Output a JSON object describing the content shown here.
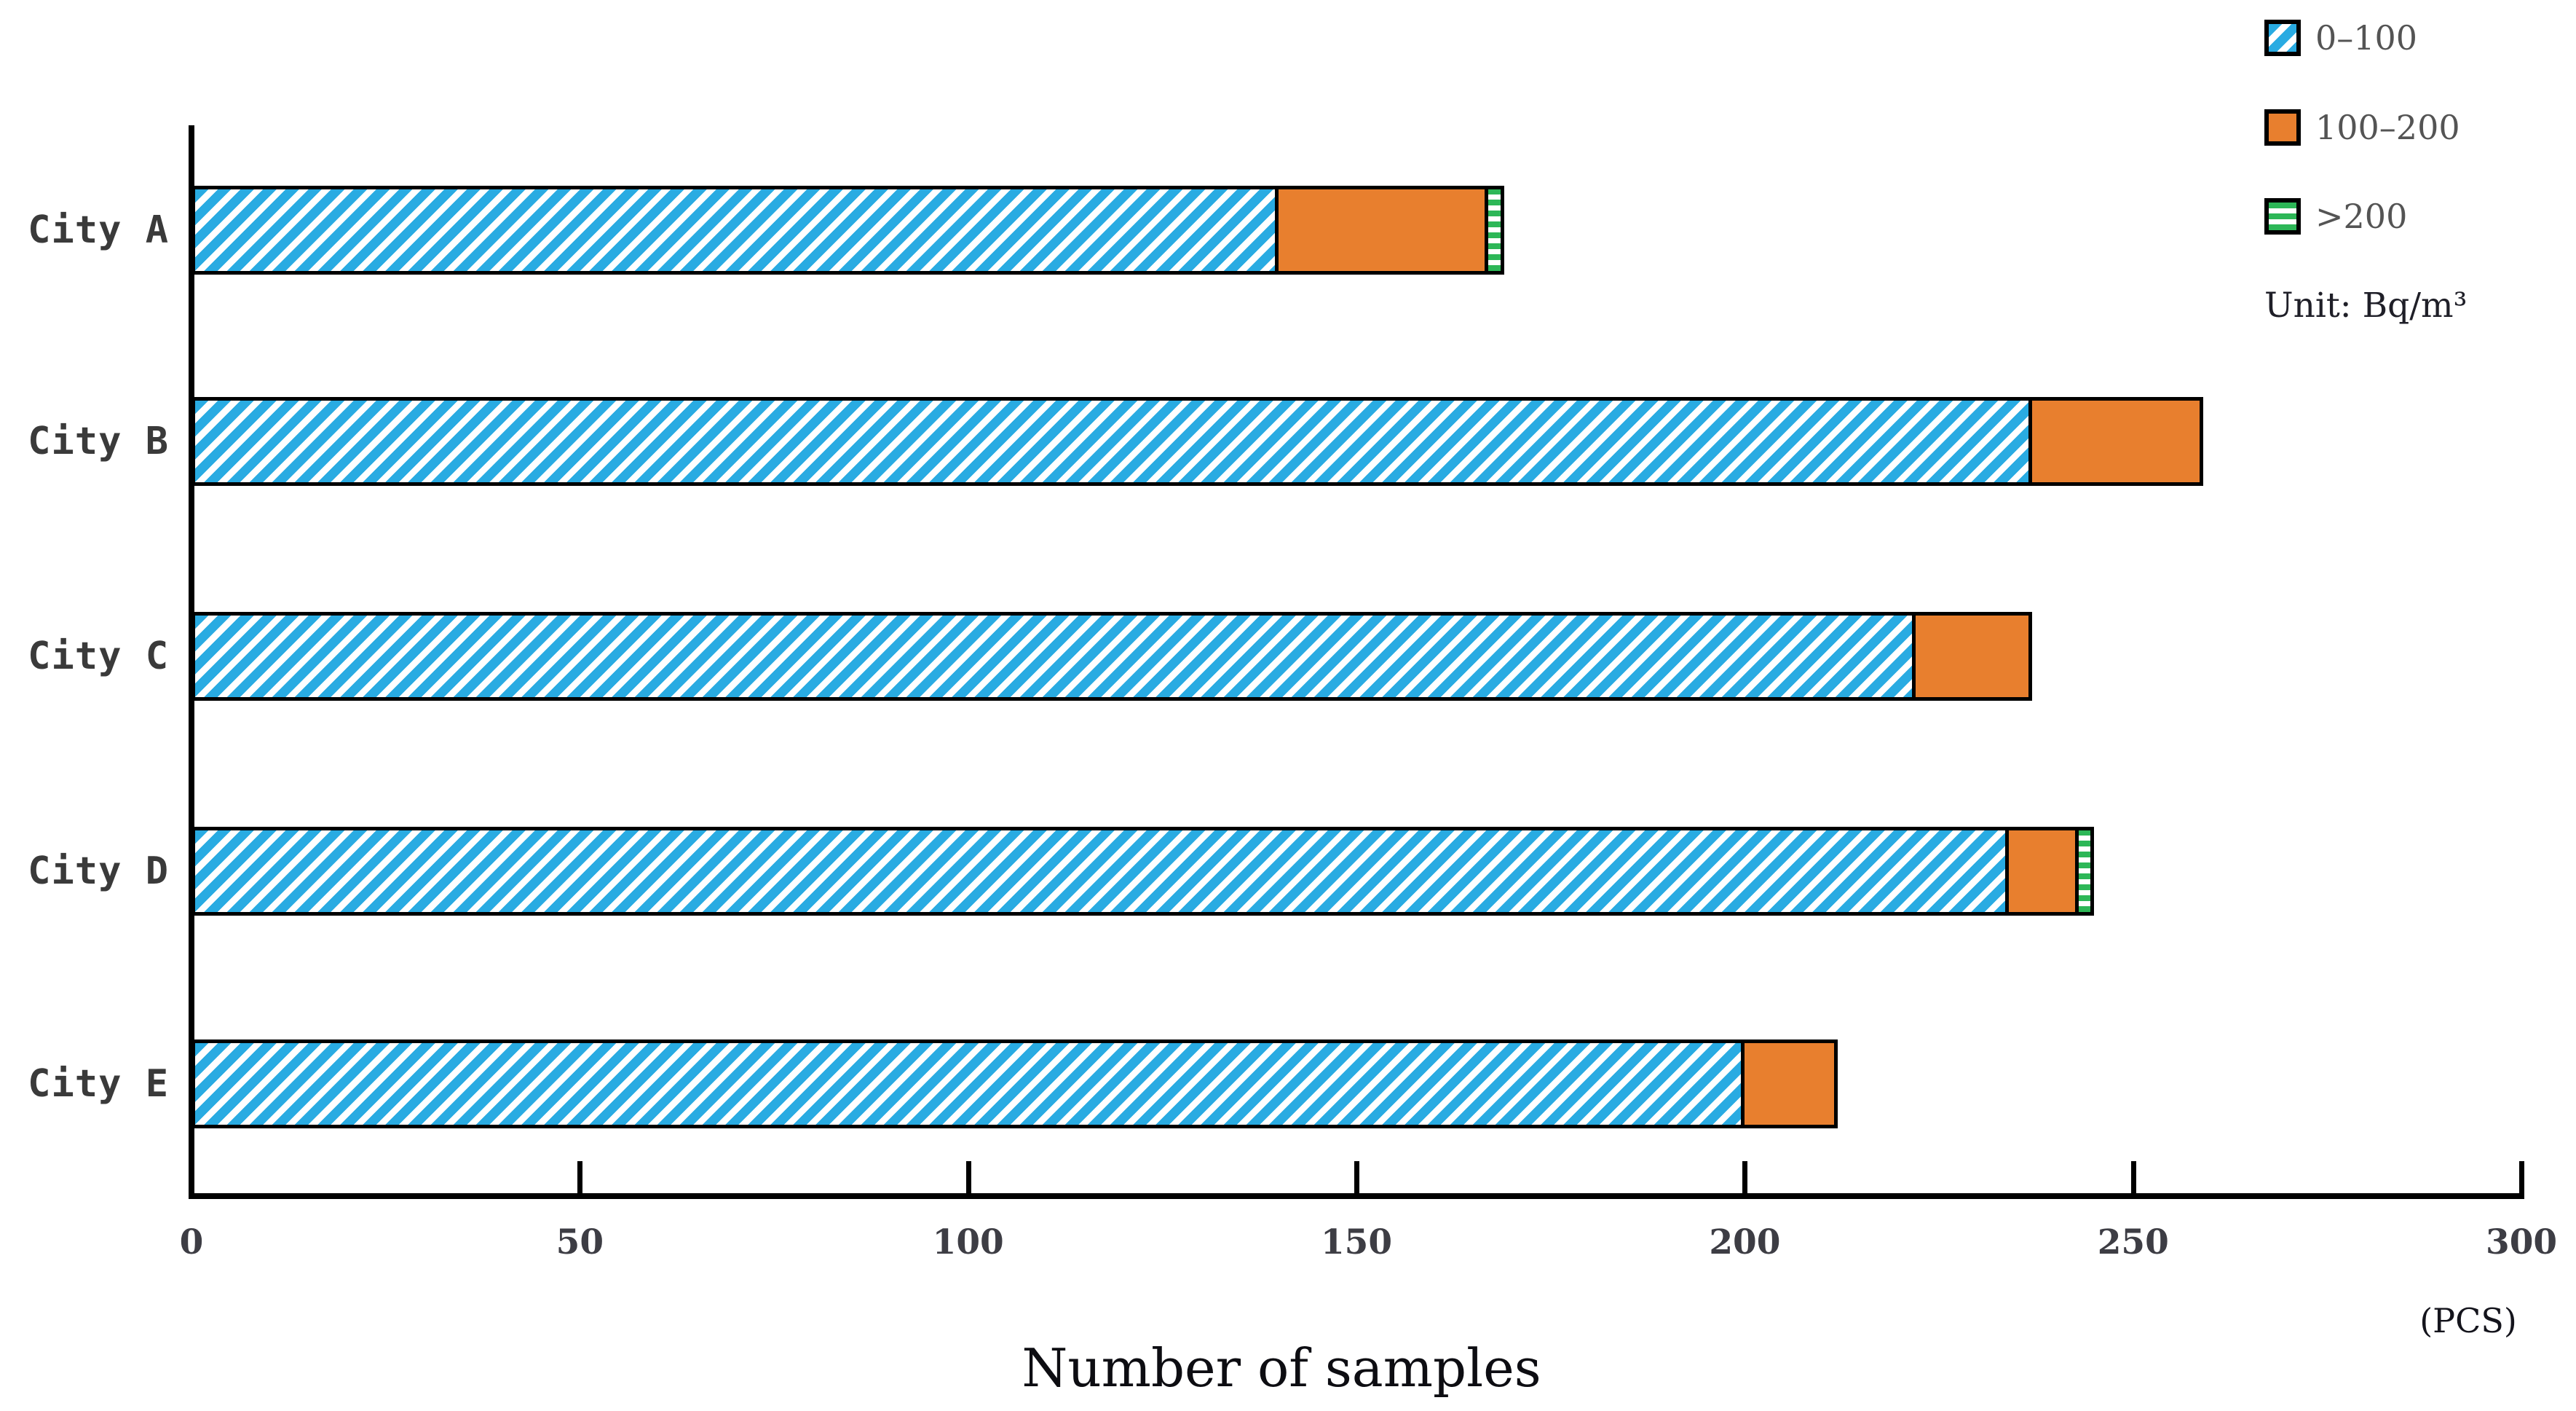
{
  "chart_data": {
    "type": "bar",
    "orientation": "horizontal-stacked",
    "title": "",
    "xlabel": "Number of samples",
    "ylabel": "",
    "axis_unit": "(PCS)",
    "unit_note": "Unit: Bq/m³",
    "xlim": [
      0,
      300
    ],
    "xticks": [
      0,
      50,
      100,
      150,
      200,
      250,
      300
    ],
    "grid": false,
    "legend_position": "top-right",
    "categories": [
      "City A",
      "City B",
      "City C",
      "City D",
      "City E"
    ],
    "series": [
      {
        "name": "0–100",
        "pattern": "diagonal-hatch",
        "color": "#29abe2",
        "values": [
          140,
          237,
          222,
          234,
          200
        ]
      },
      {
        "name": "100–200",
        "pattern": "solid",
        "color": "#e87f2e",
        "values": [
          27,
          22,
          15,
          9,
          12
        ]
      },
      {
        "name": ">200",
        "pattern": "horizontal-stripes",
        "color": "#2db757",
        "values": [
          2,
          0,
          0,
          2,
          0
        ]
      }
    ]
  }
}
